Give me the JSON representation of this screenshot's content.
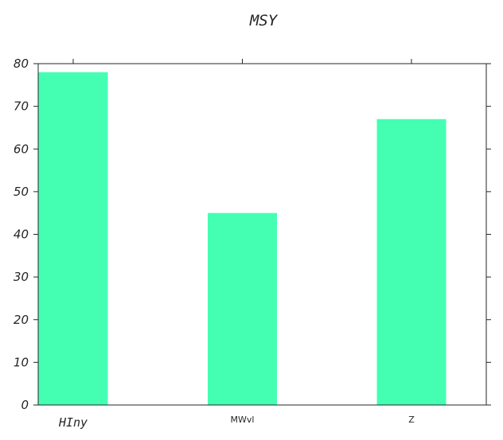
{
  "chart_data": {
    "type": "bar",
    "title": "MSY",
    "categories": [
      "HIny",
      "MWvl",
      "Z"
    ],
    "values": [
      78,
      45,
      67
    ],
    "xlabel": "",
    "ylabel": "",
    "ylim": [
      0,
      80
    ],
    "yticks": [
      0,
      10,
      20,
      30,
      40,
      50,
      60,
      70,
      80
    ],
    "grid": false,
    "legend": "none",
    "bar_color": "#44ffb1",
    "axis_color": "#262626"
  }
}
